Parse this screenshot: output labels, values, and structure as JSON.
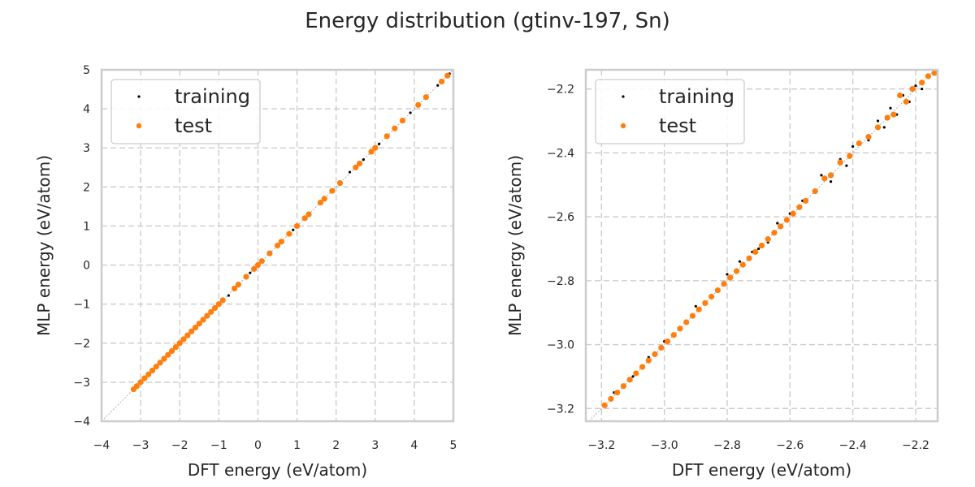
{
  "figure": {
    "title": "Energy distribution (gtinv-197, Sn)"
  },
  "colors": {
    "training": "#000000",
    "test": "#ff7f0e",
    "grid": "#cccccc",
    "diagonal": "#a0a0a0"
  },
  "chart_data": [
    {
      "type": "scatter",
      "xlabel": "DFT energy (eV/atom)",
      "ylabel": "MLP energy (eV/atom)",
      "xlim": [
        -4,
        5
      ],
      "ylim": [
        -4,
        5
      ],
      "xticks": [
        -4,
        -3,
        -2,
        -1,
        0,
        1,
        2,
        3,
        4,
        5
      ],
      "yticks": [
        -4,
        -3,
        -2,
        -1,
        0,
        1,
        2,
        3,
        4,
        5
      ],
      "grid": true,
      "diagonal": true,
      "legend": {
        "position": "top-left",
        "entries": [
          "training",
          "test"
        ]
      },
      "series": [
        {
          "name": "training",
          "color": "#000000",
          "points": [
            [
              -3.18,
              -3.18
            ],
            [
              -3.0,
              -3.0
            ],
            [
              -2.6,
              -2.6
            ],
            [
              -2.2,
              -2.2
            ],
            [
              -1.8,
              -1.8
            ],
            [
              -1.4,
              -1.4
            ],
            [
              -1.0,
              -1.0
            ],
            [
              -0.75,
              -0.78
            ],
            [
              -0.5,
              -0.5
            ],
            [
              -0.2,
              -0.2
            ],
            [
              0.1,
              0.1
            ],
            [
              0.5,
              0.5
            ],
            [
              0.9,
              0.9
            ],
            [
              1.3,
              1.3
            ],
            [
              1.7,
              1.7
            ],
            [
              2.1,
              2.1
            ],
            [
              2.35,
              2.38
            ],
            [
              2.7,
              2.7
            ],
            [
              3.1,
              3.1
            ],
            [
              3.5,
              3.5
            ],
            [
              3.9,
              3.9
            ],
            [
              4.3,
              4.3
            ],
            [
              4.6,
              4.6
            ],
            [
              4.9,
              4.9
            ]
          ]
        },
        {
          "name": "test",
          "color": "#ff7f0e",
          "points": [
            [
              -3.18,
              -3.18
            ],
            [
              -3.1,
              -3.1
            ],
            [
              -3.0,
              -3.0
            ],
            [
              -2.9,
              -2.9
            ],
            [
              -2.8,
              -2.8
            ],
            [
              -2.7,
              -2.7
            ],
            [
              -2.6,
              -2.6
            ],
            [
              -2.5,
              -2.5
            ],
            [
              -2.4,
              -2.4
            ],
            [
              -2.3,
              -2.3
            ],
            [
              -2.2,
              -2.2
            ],
            [
              -2.1,
              -2.1
            ],
            [
              -2.0,
              -2.0
            ],
            [
              -1.9,
              -1.9
            ],
            [
              -1.8,
              -1.8
            ],
            [
              -1.7,
              -1.7
            ],
            [
              -1.6,
              -1.6
            ],
            [
              -1.5,
              -1.5
            ],
            [
              -1.4,
              -1.4
            ],
            [
              -1.3,
              -1.3
            ],
            [
              -1.2,
              -1.2
            ],
            [
              -1.1,
              -1.1
            ],
            [
              -1.0,
              -1.0
            ],
            [
              -0.9,
              -0.9
            ],
            [
              -0.6,
              -0.6
            ],
            [
              -0.5,
              -0.5
            ],
            [
              -0.3,
              -0.3
            ],
            [
              -0.1,
              -0.1
            ],
            [
              0.0,
              0.0
            ],
            [
              0.1,
              0.1
            ],
            [
              0.3,
              0.3
            ],
            [
              0.5,
              0.5
            ],
            [
              0.6,
              0.6
            ],
            [
              0.8,
              0.8
            ],
            [
              1.0,
              1.0
            ],
            [
              1.2,
              1.2
            ],
            [
              1.3,
              1.3
            ],
            [
              1.6,
              1.6
            ],
            [
              1.7,
              1.7
            ],
            [
              1.9,
              1.9
            ],
            [
              2.1,
              2.1
            ],
            [
              2.5,
              2.5
            ],
            [
              2.6,
              2.6
            ],
            [
              2.9,
              2.9
            ],
            [
              3.0,
              3.0
            ],
            [
              3.3,
              3.3
            ],
            [
              3.5,
              3.5
            ],
            [
              3.7,
              3.7
            ],
            [
              4.1,
              4.1
            ],
            [
              4.3,
              4.3
            ],
            [
              4.7,
              4.7
            ],
            [
              4.85,
              4.85
            ]
          ]
        }
      ]
    },
    {
      "type": "scatter",
      "xlabel": "DFT energy (eV/atom)",
      "ylabel": "MLP energy (eV/atom)",
      "xlim": [
        -3.25,
        -2.13
      ],
      "ylim": [
        -3.24,
        -2.14
      ],
      "xticks": [
        -3.2,
        -3.0,
        -2.8,
        -2.6,
        -2.4,
        -2.2
      ],
      "yticks": [
        -3.2,
        -3.0,
        -2.8,
        -2.6,
        -2.4,
        -2.2
      ],
      "grid": true,
      "diagonal": true,
      "legend": {
        "position": "top-left",
        "entries": [
          "training",
          "test"
        ]
      },
      "series": [
        {
          "name": "training",
          "color": "#000000",
          "points": [
            [
              -3.16,
              -3.15
            ],
            [
              -3.1,
              -3.1
            ],
            [
              -3.05,
              -3.04
            ],
            [
              -3.0,
              -2.99
            ],
            [
              -2.95,
              -2.95
            ],
            [
              -2.9,
              -2.88
            ],
            [
              -2.85,
              -2.85
            ],
            [
              -2.8,
              -2.78
            ],
            [
              -2.76,
              -2.74
            ],
            [
              -2.72,
              -2.71
            ],
            [
              -2.7,
              -2.7
            ],
            [
              -2.67,
              -2.68
            ],
            [
              -2.64,
              -2.62
            ],
            [
              -2.6,
              -2.59
            ],
            [
              -2.56,
              -2.55
            ],
            [
              -2.52,
              -2.52
            ],
            [
              -2.5,
              -2.47
            ],
            [
              -2.47,
              -2.49
            ],
            [
              -2.44,
              -2.42
            ],
            [
              -2.42,
              -2.44
            ],
            [
              -2.4,
              -2.38
            ],
            [
              -2.38,
              -2.37
            ],
            [
              -2.35,
              -2.36
            ],
            [
              -2.32,
              -2.3
            ],
            [
              -2.3,
              -2.32
            ],
            [
              -2.28,
              -2.26
            ],
            [
              -2.26,
              -2.28
            ],
            [
              -2.24,
              -2.22
            ],
            [
              -2.22,
              -2.24
            ],
            [
              -2.2,
              -2.19
            ],
            [
              -2.18,
              -2.2
            ],
            [
              -2.16,
              -2.16
            ],
            [
              -2.14,
              -2.15
            ]
          ]
        },
        {
          "name": "test",
          "color": "#ff7f0e",
          "points": [
            [
              -3.19,
              -3.19
            ],
            [
              -3.17,
              -3.17
            ],
            [
              -3.15,
              -3.15
            ],
            [
              -3.13,
              -3.13
            ],
            [
              -3.11,
              -3.11
            ],
            [
              -3.09,
              -3.09
            ],
            [
              -3.07,
              -3.07
            ],
            [
              -3.05,
              -3.05
            ],
            [
              -3.03,
              -3.03
            ],
            [
              -3.01,
              -3.01
            ],
            [
              -2.99,
              -2.99
            ],
            [
              -2.97,
              -2.97
            ],
            [
              -2.95,
              -2.95
            ],
            [
              -2.93,
              -2.93
            ],
            [
              -2.91,
              -2.91
            ],
            [
              -2.89,
              -2.89
            ],
            [
              -2.87,
              -2.87
            ],
            [
              -2.85,
              -2.85
            ],
            [
              -2.83,
              -2.83
            ],
            [
              -2.81,
              -2.81
            ],
            [
              -2.79,
              -2.79
            ],
            [
              -2.77,
              -2.77
            ],
            [
              -2.75,
              -2.75
            ],
            [
              -2.73,
              -2.73
            ],
            [
              -2.71,
              -2.71
            ],
            [
              -2.69,
              -2.69
            ],
            [
              -2.67,
              -2.67
            ],
            [
              -2.65,
              -2.65
            ],
            [
              -2.63,
              -2.63
            ],
            [
              -2.61,
              -2.61
            ],
            [
              -2.59,
              -2.59
            ],
            [
              -2.57,
              -2.57
            ],
            [
              -2.55,
              -2.55
            ],
            [
              -2.52,
              -2.52
            ],
            [
              -2.49,
              -2.48
            ],
            [
              -2.47,
              -2.47
            ],
            [
              -2.44,
              -2.43
            ],
            [
              -2.41,
              -2.41
            ],
            [
              -2.38,
              -2.37
            ],
            [
              -2.35,
              -2.35
            ],
            [
              -2.32,
              -2.32
            ],
            [
              -2.29,
              -2.29
            ],
            [
              -2.27,
              -2.28
            ],
            [
              -2.25,
              -2.22
            ],
            [
              -2.23,
              -2.24
            ],
            [
              -2.21,
              -2.2
            ],
            [
              -2.18,
              -2.18
            ],
            [
              -2.16,
              -2.16
            ],
            [
              -2.14,
              -2.15
            ]
          ]
        }
      ]
    }
  ]
}
